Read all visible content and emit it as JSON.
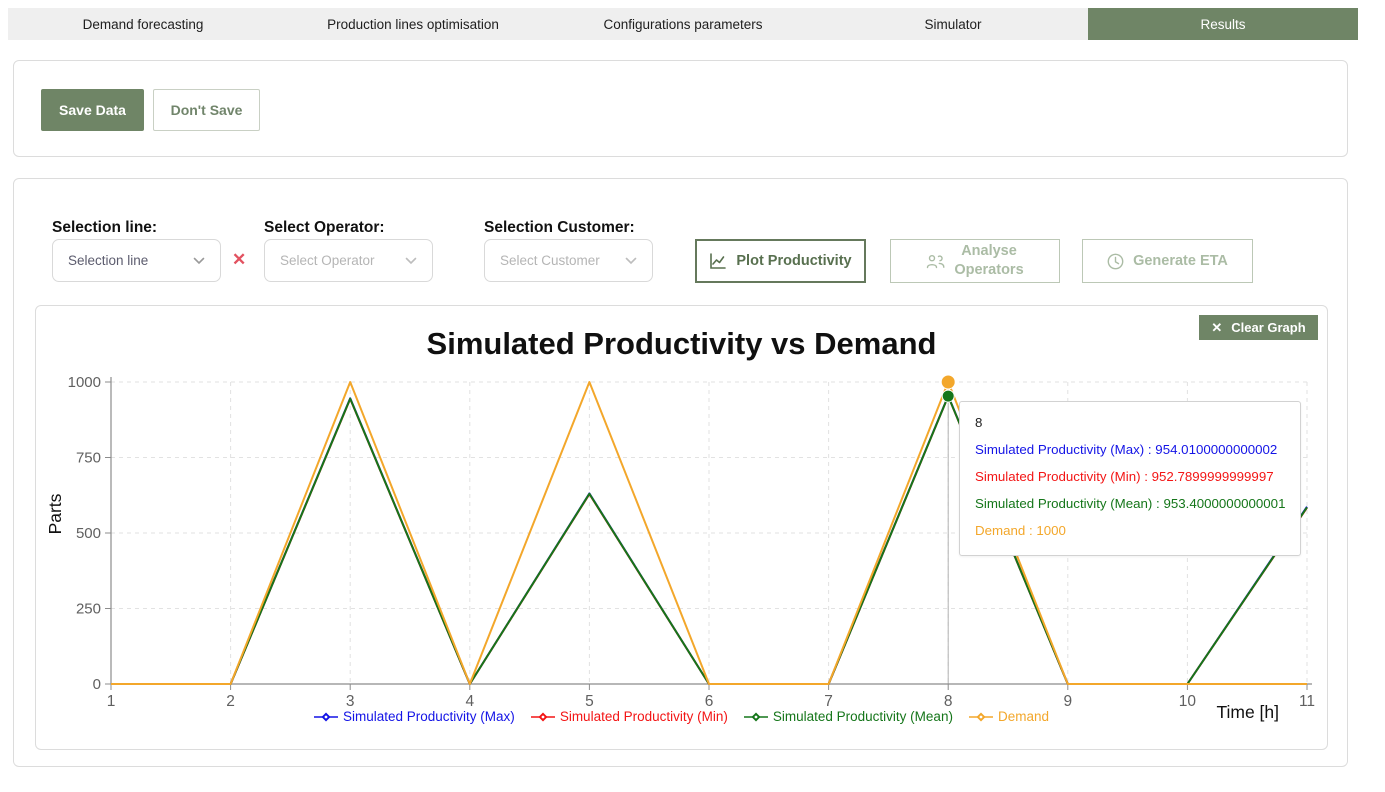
{
  "nav": {
    "tabs": [
      {
        "label": "Demand forecasting",
        "active": false
      },
      {
        "label": "Production lines optimisation",
        "active": false
      },
      {
        "label": "Configurations parameters",
        "active": false
      },
      {
        "label": "Simulator",
        "active": false
      },
      {
        "label": "Results",
        "active": true
      }
    ]
  },
  "save_panel": {
    "save_label": "Save Data",
    "dont_save_label": "Don't Save"
  },
  "selection": {
    "line_label": "Selection line:",
    "line_value": "Selection line",
    "clear_x": "✕",
    "operator_label": "Select Operator:",
    "operator_value": "Select Operator",
    "customer_label": "Selection Customer:",
    "customer_value": "Select Customer",
    "plot_button": "Plot Productivity",
    "analyse_button_line1": "Analyse",
    "analyse_button_line2": "Operators",
    "eta_button": "Generate ETA"
  },
  "chart_panel": {
    "clear_button": "Clear Graph",
    "clear_icon": "✕",
    "tooltip": {
      "header": "8",
      "lines": [
        {
          "text": "Simulated Productivity (Max) : 954.0100000000002",
          "color": "#1414e6"
        },
        {
          "text": "Simulated Productivity (Min) : 952.7899999999997",
          "color": "#f31515"
        },
        {
          "text": "Simulated Productivity (Mean) : 953.4000000000001",
          "color": "#15761a"
        },
        {
          "text": "Demand : 1000",
          "color": "#f3a72b"
        }
      ]
    }
  },
  "chart_data": {
    "type": "line",
    "title": "Simulated Productivity vs Demand",
    "xlabel": "Time [h]",
    "ylabel": "Parts",
    "x": [
      1,
      2,
      3,
      4,
      5,
      6,
      7,
      8,
      9,
      10,
      11
    ],
    "xlim": [
      1,
      11
    ],
    "ylim": [
      0,
      1000
    ],
    "yticks": [
      0,
      250,
      500,
      750,
      1000
    ],
    "grid": true,
    "legend_position": "bottom",
    "series": [
      {
        "name": "Simulated Productivity (Max)",
        "color": "#1414e6",
        "values": [
          0,
          0,
          946,
          0,
          631,
          0,
          0,
          954.01,
          0,
          0,
          587
        ]
      },
      {
        "name": "Simulated Productivity (Min)",
        "color": "#f31515",
        "values": [
          0,
          0,
          944,
          0,
          629,
          0,
          0,
          952.79,
          0,
          0,
          584
        ]
      },
      {
        "name": "Simulated Productivity (Mean)",
        "color": "#15761a",
        "values": [
          0,
          0,
          945,
          0,
          630,
          0,
          0,
          953.4,
          0,
          0,
          585
        ]
      },
      {
        "name": "Demand",
        "color": "#f3a72b",
        "values": [
          0,
          0,
          1000,
          0,
          1000,
          0,
          0,
          1000,
          0,
          0,
          0
        ]
      }
    ],
    "hover": {
      "x": 8,
      "markers": [
        {
          "series": "Simulated Productivity (Mean)",
          "value": 953.4,
          "color": "#15761a"
        },
        {
          "series": "Demand",
          "value": 1000,
          "color": "#f3a72b"
        }
      ]
    }
  },
  "colors": {
    "accent_green": "#6f8566",
    "disabled_green": "#abbca5",
    "grid": "#e2e2e2",
    "axis": "#8c8c8c",
    "tick_text": "#606060"
  }
}
